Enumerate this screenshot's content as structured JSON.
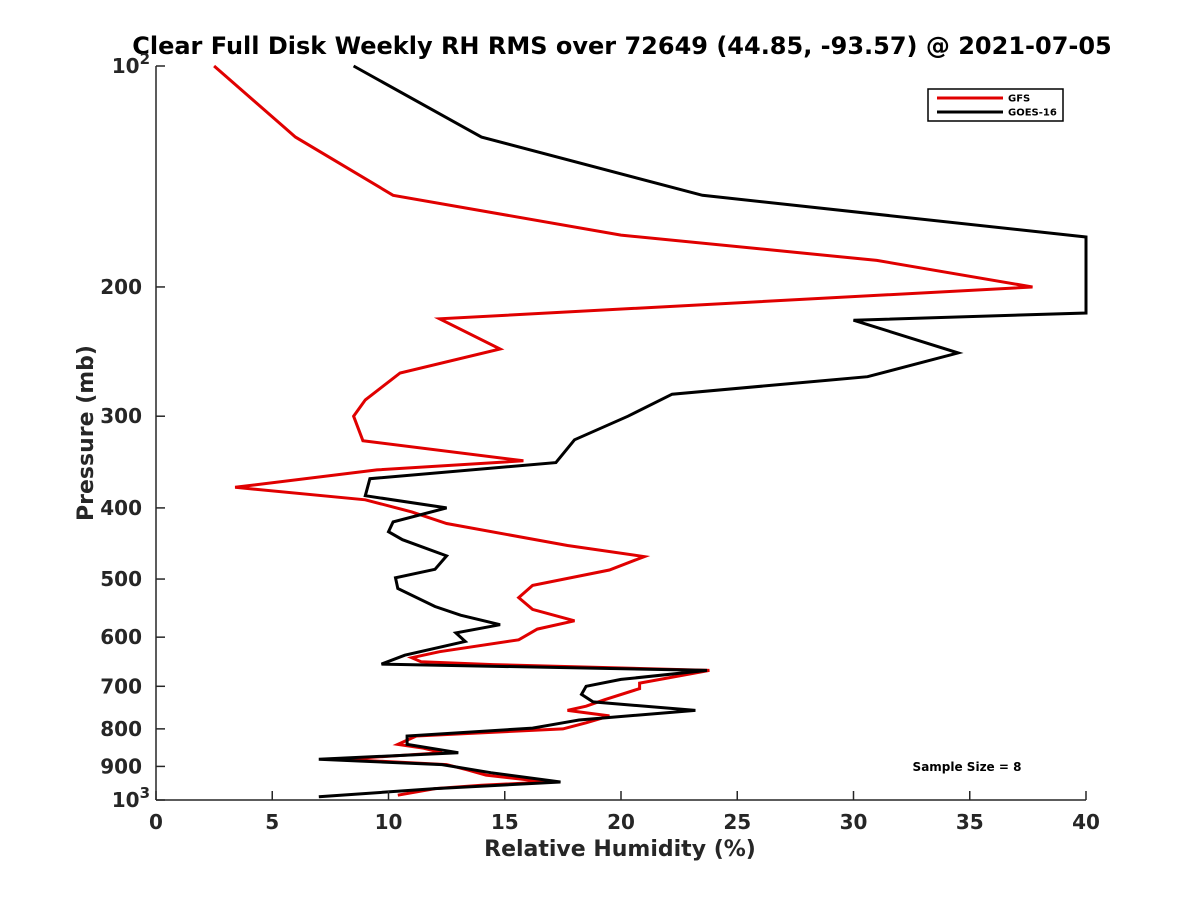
{
  "chart_data": {
    "type": "line",
    "title": "Clear Full Disk Weekly RH RMS over 72649 (44.85, -93.57) @ 2021-07-05",
    "xlabel": "Relative Humidity (%)",
    "ylabel": "Pressure (mb)",
    "xlim": [
      0,
      40
    ],
    "ylim": [
      100,
      1000
    ],
    "y_scale": "log",
    "y_reversed": true,
    "x_ticks": [
      "0",
      "5",
      "10",
      "15",
      "20",
      "25",
      "30",
      "35",
      "40"
    ],
    "y_ticks": [
      {
        "value": 100,
        "base": "10",
        "exp": "2"
      },
      {
        "value": 200,
        "label": "200"
      },
      {
        "value": 300,
        "label": "300"
      },
      {
        "value": 400,
        "label": "400"
      },
      {
        "value": 500,
        "label": "500"
      },
      {
        "value": 600,
        "label": "600"
      },
      {
        "value": 700,
        "label": "700"
      },
      {
        "value": 800,
        "label": "800"
      },
      {
        "value": 900,
        "label": "900"
      },
      {
        "value": 1000,
        "base": "10",
        "exp": "3"
      }
    ],
    "grid": false,
    "legend_position": "top-right",
    "annotation": "Sample Size = 8",
    "series": [
      {
        "name": "GFS",
        "color": "#e00000",
        "points": [
          [
            2.5,
            100
          ],
          [
            6.0,
            125
          ],
          [
            10.2,
            150
          ],
          [
            20.0,
            170
          ],
          [
            31.0,
            184
          ],
          [
            37.7,
            200
          ],
          [
            12.2,
            221
          ],
          [
            14.8,
            243
          ],
          [
            10.5,
            262
          ],
          [
            9.0,
            285
          ],
          [
            8.5,
            300
          ],
          [
            8.9,
            324
          ],
          [
            15.8,
            345
          ],
          [
            9.5,
            355
          ],
          [
            3.4,
            375
          ],
          [
            9.0,
            390
          ],
          [
            11.0,
            405
          ],
          [
            12.5,
            420
          ],
          [
            17.7,
            450
          ],
          [
            21.0,
            466
          ],
          [
            19.5,
            486
          ],
          [
            16.2,
            510
          ],
          [
            15.6,
            530
          ],
          [
            16.2,
            550
          ],
          [
            18.0,
            570
          ],
          [
            16.4,
            585
          ],
          [
            15.6,
            605
          ],
          [
            12.2,
            628
          ],
          [
            11.0,
            640
          ],
          [
            11.4,
            648
          ],
          [
            14.5,
            654
          ],
          [
            23.8,
            666
          ],
          [
            20.8,
            693
          ],
          [
            20.8,
            705
          ],
          [
            19.3,
            730
          ],
          [
            18.5,
            745
          ],
          [
            17.7,
            755
          ],
          [
            19.5,
            768
          ],
          [
            18.5,
            785
          ],
          [
            17.5,
            800
          ],
          [
            11.2,
            818
          ],
          [
            10.4,
            840
          ],
          [
            11.5,
            850
          ],
          [
            12.3,
            862
          ],
          [
            8.0,
            880
          ],
          [
            12.5,
            895
          ],
          [
            13.4,
            910
          ],
          [
            14.2,
            925
          ],
          [
            16.8,
            945
          ],
          [
            14.0,
            955
          ],
          [
            12.0,
            965
          ],
          [
            10.4,
            985
          ]
        ]
      },
      {
        "name": "GOES-16",
        "color": "#000000",
        "points": [
          [
            8.5,
            100
          ],
          [
            14.0,
            125
          ],
          [
            23.5,
            150
          ],
          [
            40.0,
            171
          ],
          [
            40.0,
            217
          ],
          [
            30.0,
            222
          ],
          [
            34.5,
            246
          ],
          [
            30.6,
            265
          ],
          [
            22.2,
            280
          ],
          [
            20.3,
            300
          ],
          [
            18.0,
            323
          ],
          [
            17.2,
            347
          ],
          [
            9.2,
            365
          ],
          [
            9.0,
            385
          ],
          [
            12.5,
            400
          ],
          [
            10.2,
            418
          ],
          [
            10.0,
            431
          ],
          [
            10.6,
            442
          ],
          [
            12.5,
            465
          ],
          [
            12.0,
            485
          ],
          [
            10.3,
            498
          ],
          [
            10.4,
            515
          ],
          [
            12.0,
            545
          ],
          [
            13.1,
            560
          ],
          [
            14.8,
            577
          ],
          [
            12.9,
            592
          ],
          [
            13.3,
            608
          ],
          [
            10.7,
            635
          ],
          [
            9.7,
            653
          ],
          [
            23.7,
            666
          ],
          [
            20.0,
            685
          ],
          [
            18.5,
            700
          ],
          [
            18.3,
            718
          ],
          [
            18.8,
            735
          ],
          [
            23.2,
            755
          ],
          [
            18.2,
            778
          ],
          [
            17.5,
            785
          ],
          [
            16.2,
            798
          ],
          [
            10.8,
            818
          ],
          [
            10.8,
            840
          ],
          [
            13.0,
            862
          ],
          [
            7.0,
            880
          ],
          [
            12.3,
            895
          ],
          [
            14.4,
            918
          ],
          [
            17.4,
            945
          ],
          [
            12.0,
            965
          ],
          [
            7.0,
            990
          ]
        ]
      }
    ]
  }
}
